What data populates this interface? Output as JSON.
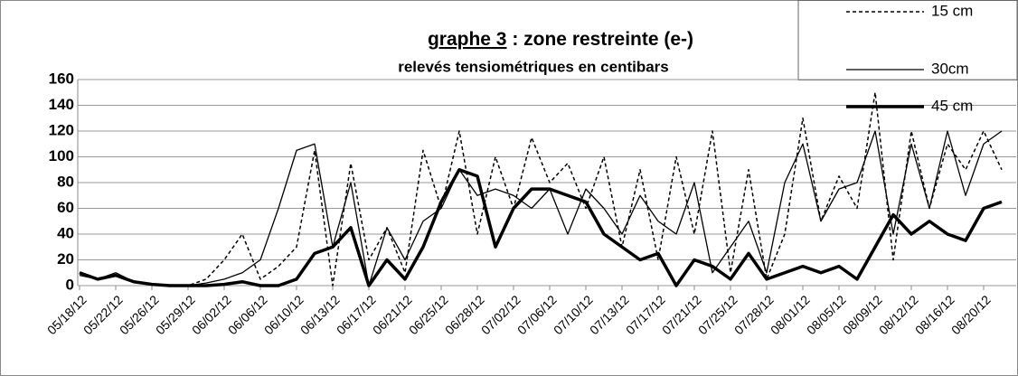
{
  "chart_data": {
    "type": "line",
    "title_parts": [
      "graphe 3",
      " : zone restreinte (e-)"
    ],
    "subtitle": "relevés tensiométriques en centibars",
    "categories": [
      "05/18/12",
      null,
      "05/22/12",
      null,
      "05/26/12",
      null,
      "05/29/12",
      null,
      "06/02/12",
      null,
      "06/06/12",
      null,
      "06/10/12",
      null,
      "06/13/12",
      null,
      "06/17/12",
      null,
      "06/21/12",
      null,
      "06/25/12",
      null,
      "06/28/12",
      null,
      "07/02/12",
      null,
      "07/06/12",
      null,
      "07/10/12",
      null,
      "07/13/12",
      null,
      "07/17/12",
      null,
      "07/21/12",
      null,
      "07/25/12",
      null,
      "07/28/12",
      null,
      "08/01/12",
      null,
      "08/05/12",
      null,
      "08/09/12",
      null,
      "08/12/12",
      null,
      "08/16/12",
      null,
      "08/20/12",
      null
    ],
    "series": [
      {
        "name": "15 cm",
        "color": "#000000",
        "dash": "dotted",
        "line_width": 1.5,
        "values": [
          10,
          5,
          8,
          3,
          1,
          0,
          0,
          5,
          20,
          40,
          5,
          15,
          30,
          105,
          0,
          95,
          20,
          45,
          10,
          105,
          60,
          120,
          40,
          100,
          60,
          115,
          80,
          95,
          60,
          100,
          30,
          90,
          20,
          100,
          40,
          120,
          10,
          90,
          5,
          40,
          130,
          50,
          85,
          60,
          150,
          20,
          120,
          60,
          110,
          90,
          120,
          90
        ]
      },
      {
        "name": "30cm",
        "color": "#000000",
        "dash": "solid",
        "line_width": 1.3,
        "values": [
          8,
          5,
          10,
          3,
          1,
          0,
          0,
          2,
          5,
          10,
          20,
          60,
          105,
          110,
          30,
          80,
          0,
          45,
          20,
          50,
          60,
          90,
          70,
          75,
          70,
          60,
          75,
          40,
          75,
          60,
          40,
          70,
          50,
          40,
          80,
          10,
          30,
          50,
          10,
          80,
          110,
          50,
          75,
          80,
          120,
          40,
          110,
          60,
          120,
          70,
          110,
          120
        ]
      },
      {
        "name": "45 cm",
        "color": "#000000",
        "dash": "solid",
        "line_width": 3.5,
        "values": [
          10,
          5,
          8,
          3,
          1,
          0,
          0,
          0,
          1,
          3,
          0,
          0,
          5,
          25,
          30,
          45,
          0,
          20,
          5,
          30,
          65,
          90,
          85,
          30,
          60,
          75,
          75,
          70,
          65,
          40,
          30,
          20,
          25,
          0,
          20,
          15,
          5,
          25,
          5,
          10,
          15,
          10,
          15,
          5,
          30,
          55,
          40,
          50,
          40,
          35,
          60,
          65
        ]
      }
    ],
    "ylim": [
      0,
      160
    ],
    "yticks": [
      0,
      20,
      40,
      60,
      80,
      100,
      120,
      140,
      160
    ],
    "grid": true
  }
}
